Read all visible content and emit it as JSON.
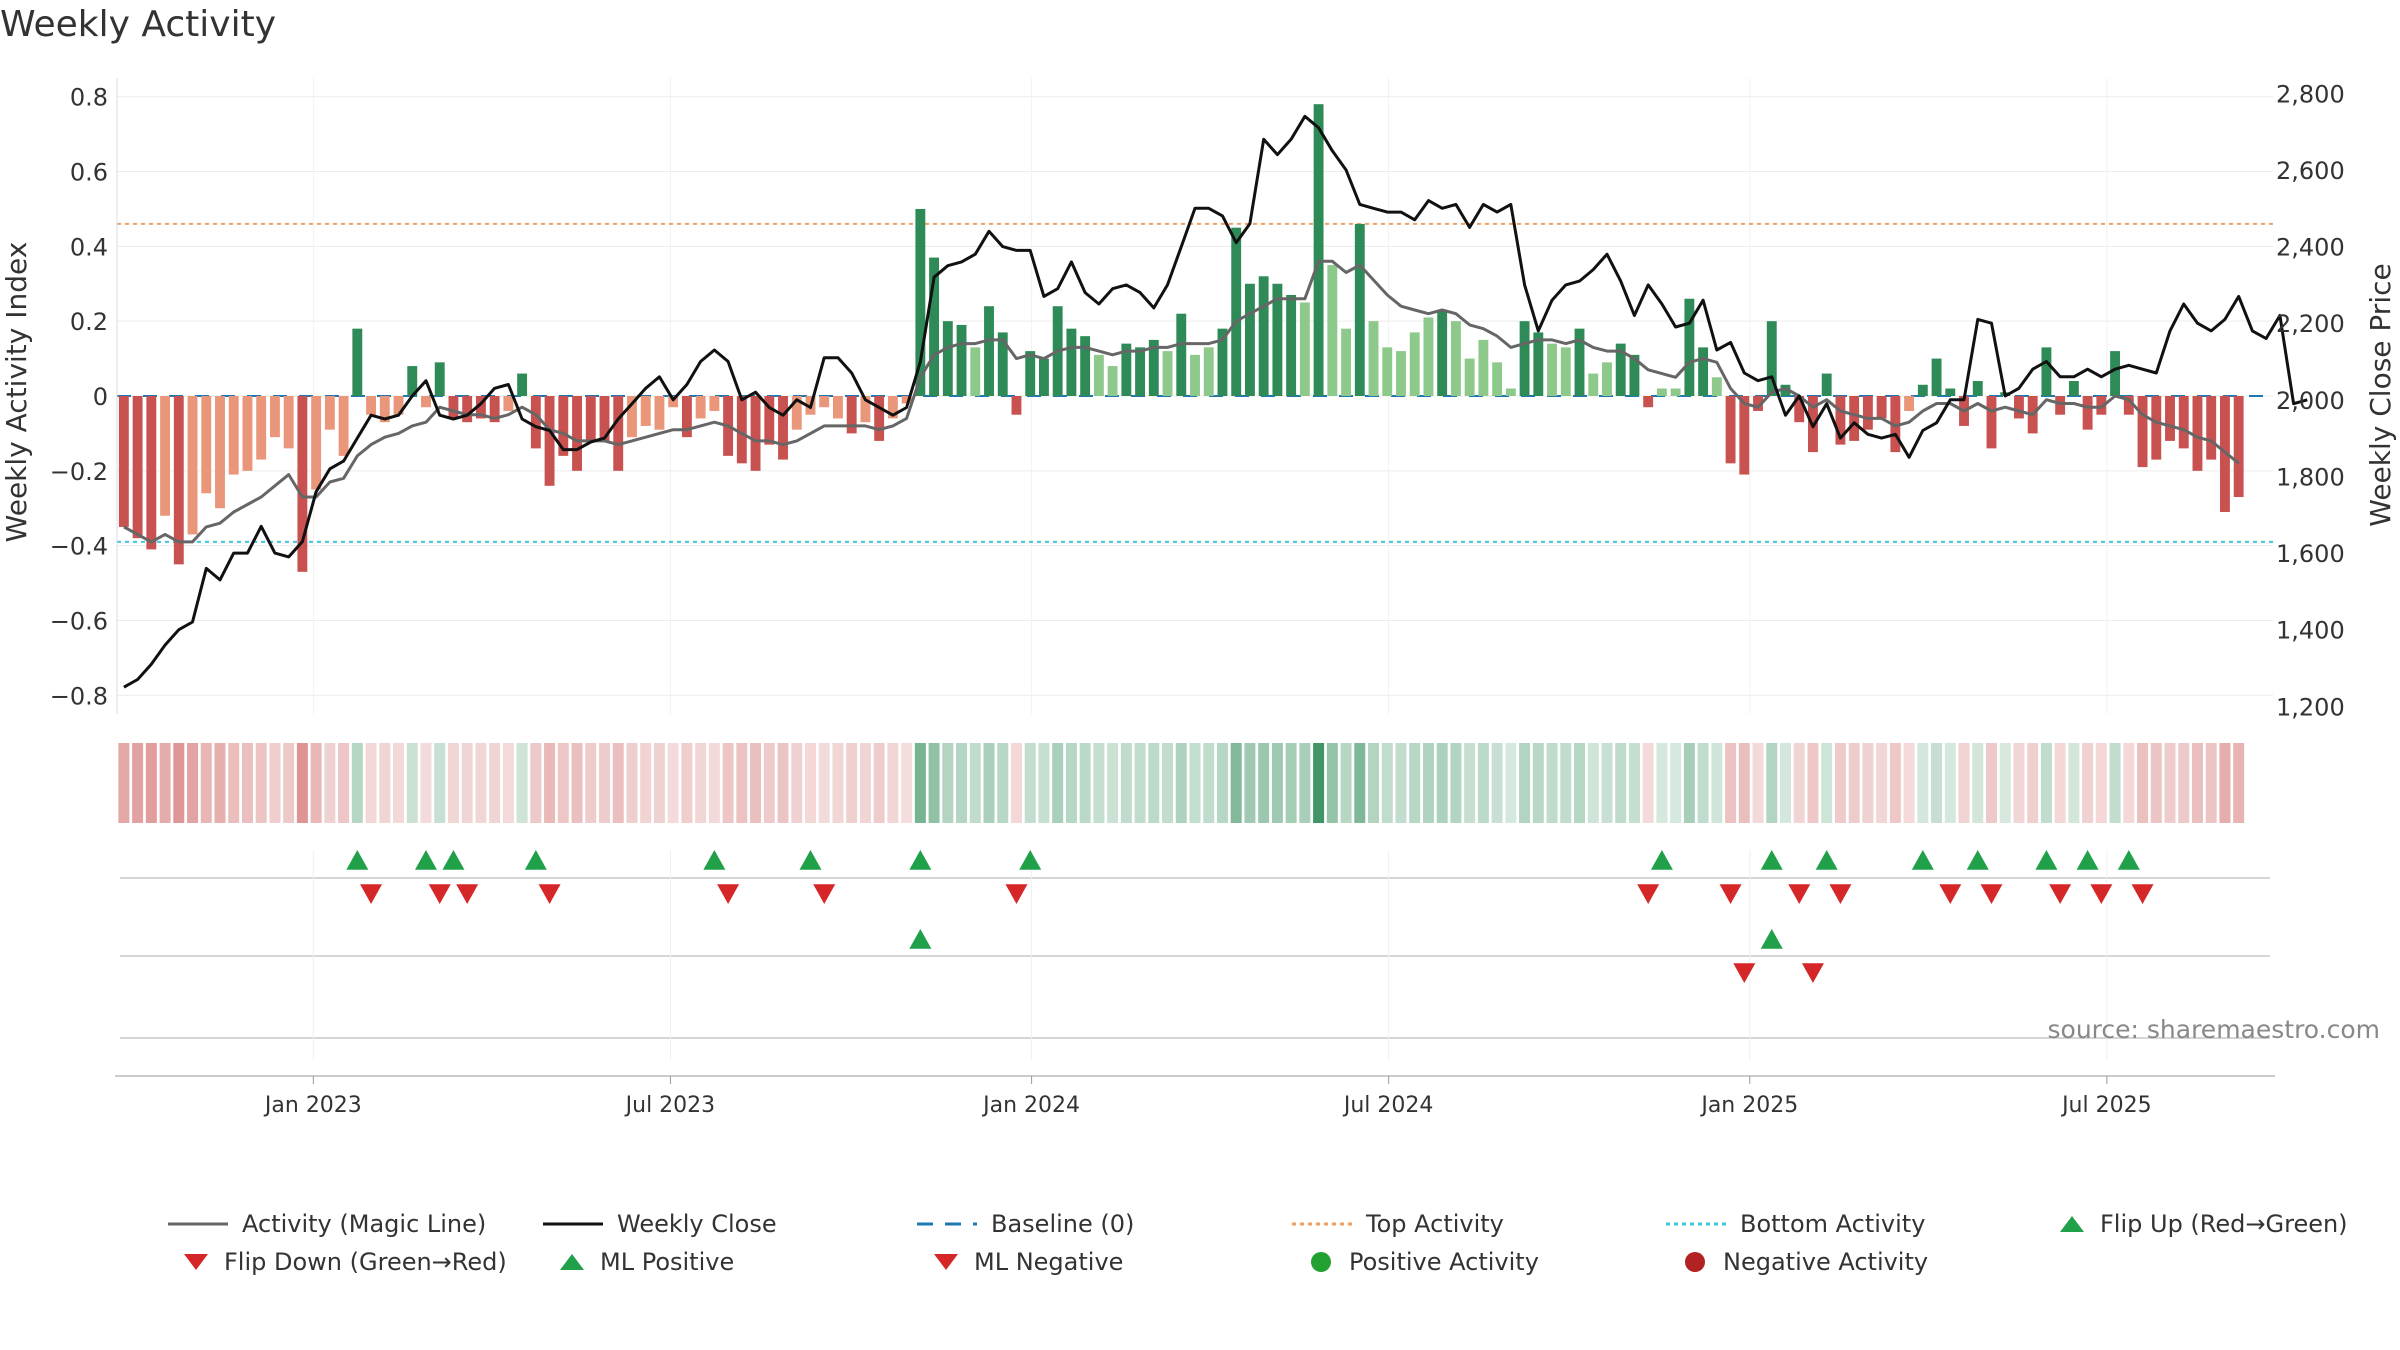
{
  "chart_data": {
    "type": "bar",
    "title": "Weekly Activity",
    "ylabel": "Weekly Activity Index",
    "ylabel_right": "Weekly Close Price",
    "ylim": [
      -0.85,
      0.85
    ],
    "ylim_right": [
      1180,
      2840
    ],
    "yticks": [
      -0.8,
      -0.6,
      -0.4,
      -0.2,
      0,
      0.2,
      0.4,
      0.6,
      0.8
    ],
    "ytick_labels": [
      "−0.8",
      "−0.6",
      "−0.4",
      "−0.2",
      "0",
      "0.2",
      "0.4",
      "0.6",
      "0.8"
    ],
    "yticks_right": [
      1200,
      1400,
      1600,
      1800,
      2000,
      2200,
      2400,
      2600,
      2800
    ],
    "ytick_labels_right": [
      "1,200",
      "1,400",
      "1,600",
      "1,800",
      "2,000",
      "2,200",
      "2,400",
      "2,600",
      "2,800"
    ],
    "x_ticks": [
      "Jan 2023",
      "Jul 2023",
      "Jan 2024",
      "Jul 2024",
      "Jan 2025",
      "Jul 2025"
    ],
    "x_tick_weeks": [
      14.3,
      40.3,
      66.6,
      92.6,
      118.9,
      144.9
    ],
    "week_count": 157,
    "top_activity": 0.46,
    "bottom_activity": -0.39,
    "baseline": 0,
    "activity": [
      -0.35,
      -0.38,
      -0.41,
      -0.32,
      -0.45,
      -0.37,
      -0.26,
      -0.3,
      -0.21,
      -0.2,
      -0.17,
      -0.11,
      -0.14,
      -0.47,
      -0.25,
      -0.09,
      -0.16,
      0.18,
      -0.05,
      -0.07,
      -0.05,
      0.08,
      -0.03,
      0.09,
      -0.06,
      -0.07,
      -0.06,
      -0.07,
      -0.04,
      0.06,
      -0.14,
      -0.24,
      -0.16,
      -0.2,
      -0.12,
      -0.12,
      -0.2,
      -0.11,
      -0.08,
      -0.09,
      -0.03,
      -0.11,
      -0.06,
      -0.04,
      -0.16,
      -0.18,
      -0.2,
      -0.13,
      -0.17,
      -0.09,
      -0.05,
      -0.03,
      -0.06,
      -0.1,
      -0.07,
      -0.12,
      -0.06,
      -0.02,
      0.5,
      0.37,
      0.2,
      0.19,
      0.13,
      0.24,
      0.17,
      -0.05,
      0.12,
      0.1,
      0.24,
      0.18,
      0.16,
      0.11,
      0.08,
      0.14,
      0.13,
      0.15,
      0.12,
      0.22,
      0.11,
      0.13,
      0.18,
      0.45,
      0.3,
      0.32,
      0.3,
      0.27,
      0.25,
      0.78,
      0.35,
      0.18,
      0.46,
      0.2,
      0.13,
      0.12,
      0.17,
      0.21,
      0.23,
      0.2,
      0.1,
      0.15,
      0.09,
      0.02,
      0.2,
      0.17,
      0.14,
      0.13,
      0.18,
      0.06,
      0.09,
      0.14,
      0.11,
      -0.03,
      0.02,
      0.02,
      0.26,
      0.13,
      0.05,
      -0.18,
      -0.21,
      -0.04,
      0.2,
      0.03,
      -0.07,
      -0.15,
      0.06,
      -0.13,
      -0.12,
      -0.09,
      -0.06,
      -0.15,
      -0.04,
      0.03,
      0.1,
      0.02,
      -0.08,
      0.04,
      -0.14,
      0.01,
      -0.06,
      -0.1,
      0.13,
      -0.05,
      0.04,
      -0.09,
      -0.05,
      0.12,
      -0.05,
      -0.19,
      -0.17,
      -0.12,
      -0.14,
      -0.2,
      -0.17,
      -0.31,
      -0.27
    ],
    "magic_line": [
      -0.35,
      -0.37,
      -0.39,
      -0.37,
      -0.39,
      -0.39,
      -0.35,
      -0.34,
      -0.31,
      -0.29,
      -0.27,
      -0.24,
      -0.21,
      -0.27,
      -0.27,
      -0.23,
      -0.22,
      -0.16,
      -0.13,
      -0.11,
      -0.1,
      -0.08,
      -0.07,
      -0.03,
      -0.04,
      -0.05,
      -0.05,
      -0.06,
      -0.05,
      -0.03,
      -0.05,
      -0.09,
      -0.1,
      -0.12,
      -0.12,
      -0.12,
      -0.13,
      -0.12,
      -0.11,
      -0.1,
      -0.09,
      -0.09,
      -0.08,
      -0.07,
      -0.08,
      -0.1,
      -0.12,
      -0.12,
      -0.13,
      -0.12,
      -0.1,
      -0.08,
      -0.08,
      -0.08,
      -0.08,
      -0.09,
      -0.08,
      -0.06,
      0.05,
      0.11,
      0.13,
      0.14,
      0.14,
      0.15,
      0.15,
      0.1,
      0.11,
      0.1,
      0.12,
      0.13,
      0.13,
      0.12,
      0.11,
      0.12,
      0.12,
      0.13,
      0.13,
      0.14,
      0.14,
      0.14,
      0.15,
      0.2,
      0.22,
      0.24,
      0.26,
      0.26,
      0.26,
      0.36,
      0.36,
      0.33,
      0.35,
      0.31,
      0.27,
      0.24,
      0.23,
      0.22,
      0.23,
      0.22,
      0.19,
      0.18,
      0.16,
      0.13,
      0.14,
      0.15,
      0.15,
      0.14,
      0.15,
      0.13,
      0.12,
      0.12,
      0.1,
      0.07,
      0.06,
      0.05,
      0.09,
      0.1,
      0.09,
      0.02,
      -0.02,
      -0.03,
      0.01,
      0.02,
      0.0,
      -0.03,
      -0.01,
      -0.04,
      -0.05,
      -0.06,
      -0.06,
      -0.08,
      -0.07,
      -0.04,
      -0.02,
      -0.02,
      -0.04,
      -0.02,
      -0.04,
      -0.03,
      -0.04,
      -0.05,
      -0.01,
      -0.02,
      -0.02,
      -0.03,
      -0.03,
      0.0,
      -0.01,
      -0.05,
      -0.07,
      -0.08,
      -0.09,
      -0.11,
      -0.12,
      -0.15,
      -0.18
    ],
    "weekly_close": [
      1250,
      1270,
      1310,
      1360,
      1400,
      1420,
      1560,
      1530,
      1600,
      1600,
      1670,
      1600,
      1590,
      1630,
      1760,
      1820,
      1840,
      1900,
      1960,
      1950,
      1960,
      2010,
      2050,
      1960,
      1950,
      1960,
      1990,
      2030,
      2040,
      1950,
      1930,
      1920,
      1870,
      1870,
      1890,
      1900,
      1950,
      1990,
      2030,
      2060,
      2000,
      2040,
      2100,
      2130,
      2100,
      2000,
      2020,
      1980,
      1960,
      2000,
      1980,
      2110,
      2110,
      2070,
      2000,
      1980,
      1960,
      1980,
      2100,
      2320,
      2350,
      2360,
      2380,
      2440,
      2400,
      2390,
      2390,
      2270,
      2290,
      2360,
      2280,
      2250,
      2290,
      2300,
      2280,
      2240,
      2300,
      2400,
      2500,
      2500,
      2480,
      2410,
      2460,
      2680,
      2640,
      2680,
      2740,
      2710,
      2650,
      2600,
      2510,
      2500,
      2490,
      2490,
      2470,
      2520,
      2500,
      2510,
      2450,
      2510,
      2490,
      2510,
      2300,
      2180,
      2260,
      2300,
      2310,
      2340,
      2380,
      2310,
      2220,
      2300,
      2250,
      2190,
      2200,
      2260,
      2130,
      2150,
      2070,
      2050,
      2060,
      1960,
      2010,
      1930,
      1990,
      1900,
      1940,
      1910,
      1900,
      1910,
      1850,
      1920,
      1940,
      2000,
      2000,
      2210,
      2200,
      2010,
      2030,
      2080,
      2100,
      2060,
      2060,
      2080,
      2060,
      2080,
      2090,
      2080,
      2070,
      2180,
      2250,
      2200,
      2180,
      2210,
      2270,
      2180,
      2160,
      2220,
      1990,
      2000
    ],
    "flip_up_weeks": [
      17,
      22,
      24,
      30,
      43,
      50,
      58,
      66,
      112,
      120,
      124,
      131,
      135,
      140,
      143,
      146
    ],
    "flip_down_weeks": [
      18,
      23,
      25,
      31,
      44,
      51,
      65,
      111,
      117,
      122,
      125,
      133,
      136,
      141,
      144,
      147
    ],
    "ml_positive_weeks": [
      58,
      120
    ],
    "ml_negative_weeks": [
      118,
      123
    ],
    "legend": [
      {
        "label": "Activity (Magic Line)",
        "kind": "line"
      },
      {
        "label": "Weekly Close",
        "kind": "line"
      },
      {
        "label": "Baseline (0)",
        "kind": "dash"
      },
      {
        "label": "Top Activity",
        "kind": "dotted"
      },
      {
        "label": "Bottom Activity",
        "kind": "dotted"
      },
      {
        "label": "Flip Up (Red→Green)",
        "kind": "triangle-up"
      },
      {
        "label": "Flip Down (Green→Red)",
        "kind": "triangle-down"
      },
      {
        "label": "ML Positive",
        "kind": "triangle-up"
      },
      {
        "label": "ML Negative",
        "kind": "triangle-down"
      },
      {
        "label": "Positive Activity",
        "kind": "circle"
      },
      {
        "label": "Negative Activity",
        "kind": "circle"
      }
    ]
  },
  "colors": {
    "pos_strong": "#2e8b57",
    "pos_light": "#8dc98a",
    "neg_strong": "#c85250",
    "neg_light": "#e9967a",
    "magic_line": "#666666",
    "close_line": "#111111",
    "baseline": "#1f77b4",
    "top": "#f0a060",
    "bottom": "#3ec6e0",
    "flip_up": "#21a04a",
    "flip_down": "#d62728",
    "pos_dot": "#22a030",
    "neg_dot": "#b22222"
  },
  "source": "source: sharemaestro.com"
}
